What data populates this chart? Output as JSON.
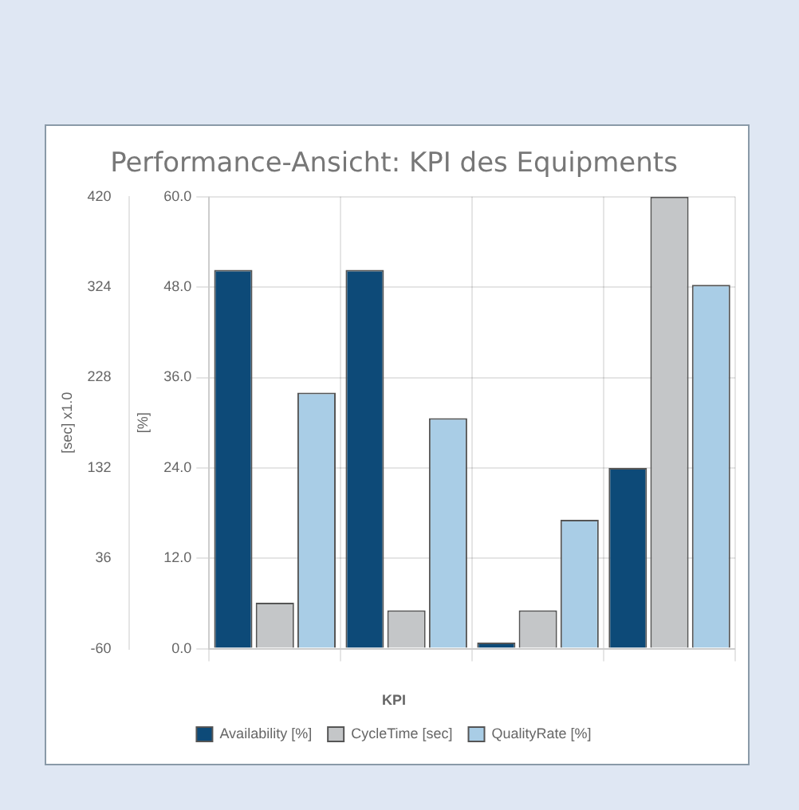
{
  "chart_data": {
    "type": "bar",
    "title": "Performance-Ansicht: KPI des Equipments",
    "ylabel": "[%]",
    "y2label": "[sec] x1.0",
    "categories": [
      null,
      null,
      null,
      null
    ],
    "series": [
      {
        "name": "Availability [%]",
        "color": "#0d4a78",
        "values": [
          50.3,
          50.3,
          0.8,
          24.0
        ]
      },
      {
        "name": "CycleTime [sec]",
        "color": "#c4c6c8",
        "values": [
          6.1,
          5.1,
          5.1,
          60.0
        ]
      },
      {
        "name": "QualityRate [%]",
        "color": "#a9cde6",
        "values": [
          34.0,
          30.6,
          17.1,
          48.3
        ]
      }
    ],
    "ylim": [
      0,
      60
    ],
    "yticks": [
      {
        "value": 0,
        "label": "0.0"
      },
      {
        "value": 12,
        "label": "12.0"
      },
      {
        "value": 24,
        "label": "24.0"
      },
      {
        "value": 36,
        "label": "36.0"
      },
      {
        "value": 48,
        "label": "48.0"
      },
      {
        "value": 60,
        "label": "60.0"
      }
    ],
    "y2lim": [
      -60,
      420
    ],
    "y2ticks": [
      -60,
      36,
      132,
      228,
      324,
      420
    ],
    "legend_title": "KPI",
    "legend": "bottom",
    "grid": true
  }
}
